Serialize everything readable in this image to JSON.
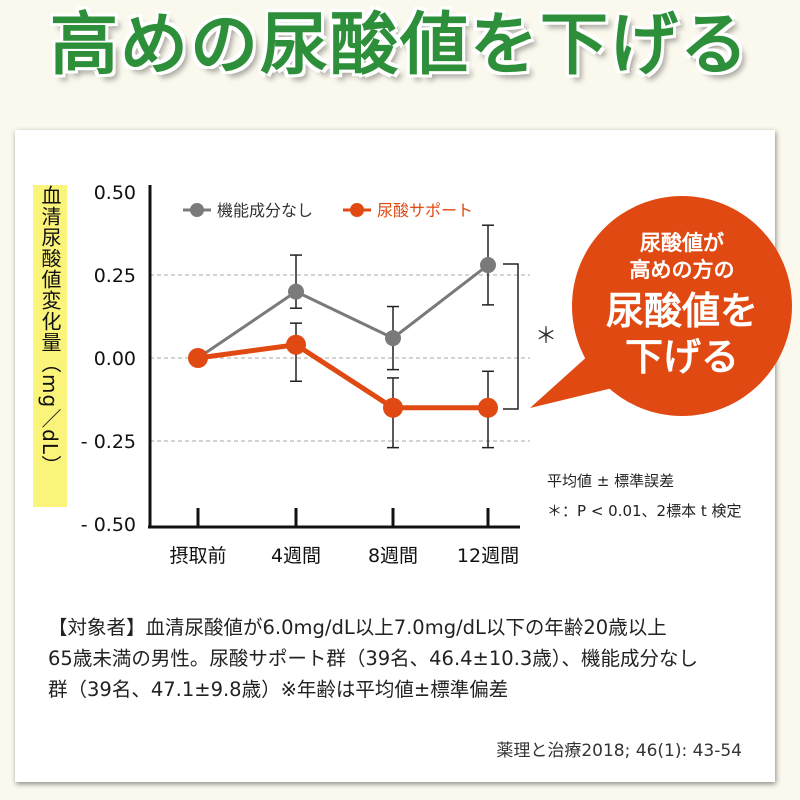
{
  "headline": "高めの尿酸値を下げる",
  "bubble": {
    "line1": "尿酸値が",
    "line2": "高めの方の",
    "line3": "尿酸値を",
    "line4": "下げる"
  },
  "notes": {
    "error": "平均値 ± 標準誤差",
    "significance": "＊：P < 0.01、2標本 t 検定",
    "asterisk": "＊"
  },
  "footnote": {
    "line1": "【対象者】血清尿酸値が6.0mg/dL以上7.0mg/dL以下の年齢20歳以上",
    "line2": "65歳未満の男性。尿酸サポート群（39名、46.4±10.3歳）、機能成分なし",
    "line3": "群（39名、47.1±9.8歳）※年齢は平均値±標準偏差"
  },
  "citation": "薬理と治療2018; 46(1): 43-54",
  "colors": {
    "title": "#2e8f3a",
    "control": "#7a7a7a",
    "treatment": "#e04a12",
    "ylabel_bg": "#fbf47a"
  },
  "chart_data": {
    "type": "line",
    "ylabel": "血清尿酸値変化量（mg／dL）",
    "categories": [
      "摂取前",
      "4週間",
      "8週間",
      "12週間"
    ],
    "yticks": [
      "0.50",
      "0.25",
      "0.00",
      "- 0.25",
      "- 0.50"
    ],
    "ylim": [
      -0.5,
      0.5
    ],
    "grid": "dashed at 0.25, 0, -0.25",
    "legend": "top",
    "series": [
      {
        "name": "機能成分なし",
        "color": "#7a7a7a",
        "values": [
          0,
          0.2,
          0.06,
          0.28
        ],
        "error_low": [
          0,
          0.15,
          -0.035,
          0.16
        ],
        "error_high": [
          0,
          0.31,
          0.155,
          0.4
        ]
      },
      {
        "name": "尿酸サポート",
        "color": "#e04a12",
        "values": [
          0,
          0.04,
          -0.15,
          -0.15
        ],
        "error_low": [
          0,
          -0.07,
          -0.27,
          -0.27
        ],
        "error_high": [
          0,
          0.105,
          -0.06,
          -0.04
        ]
      }
    ]
  }
}
